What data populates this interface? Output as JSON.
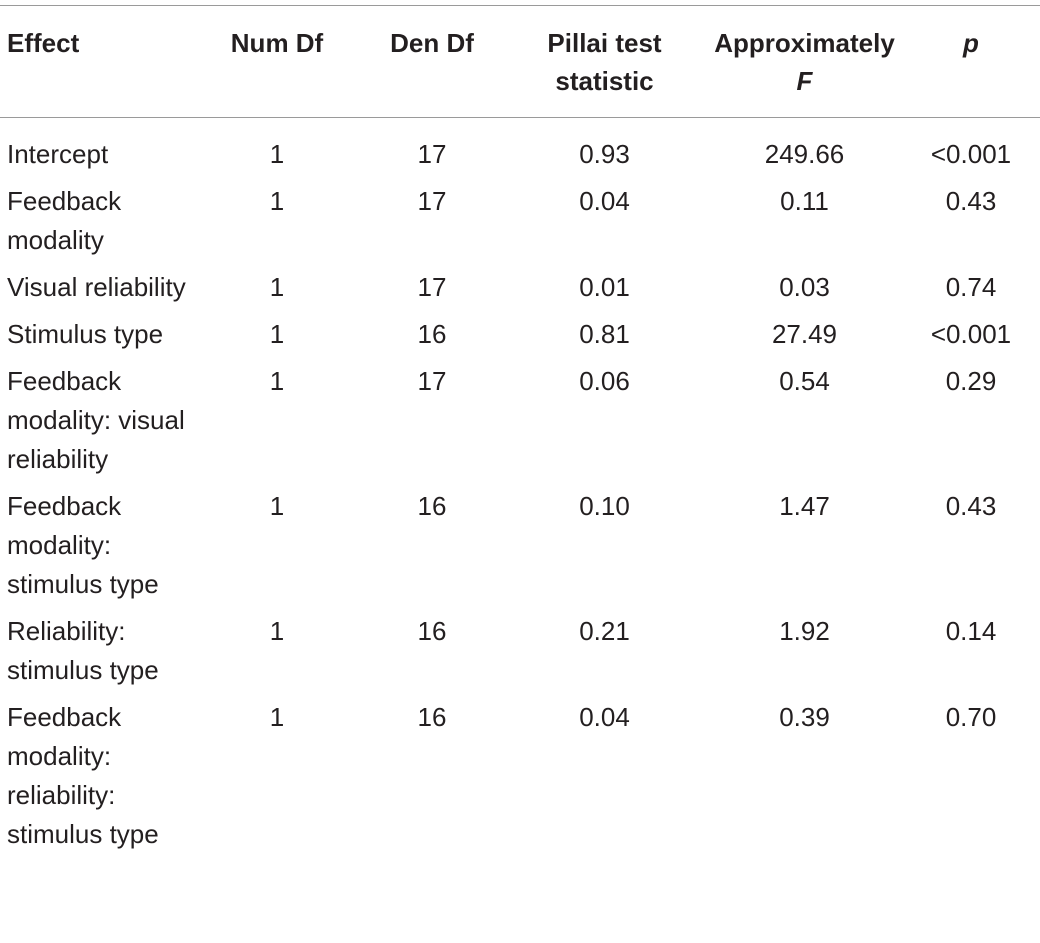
{
  "table": {
    "header": [
      "Effect",
      "Num Df",
      "Den Df",
      "Pillai test statistic",
      {
        "text": "Approximately",
        "emph": "F"
      },
      "p"
    ],
    "rows": [
      [
        "Intercept",
        "1",
        "17",
        "0.93",
        "249.66",
        "<0.001"
      ],
      [
        "Feedback modality",
        "1",
        "17",
        "0.04",
        "0.11",
        "0.43"
      ],
      [
        "Visual reliability",
        "1",
        "17",
        "0.01",
        "0.03",
        "0.74"
      ],
      [
        "Stimulus type",
        "1",
        "16",
        "0.81",
        "27.49",
        "<0.001"
      ],
      [
        "Feedback modality: visual reliability",
        "1",
        "17",
        "0.06",
        "0.54",
        "0.29"
      ],
      [
        "Feedback modality: stimulus type",
        "1",
        "16",
        "0.10",
        "1.47",
        "0.43"
      ],
      [
        "Reliability: stimulus type",
        "1",
        "16",
        "0.21",
        "1.92",
        "0.14"
      ],
      [
        "Feedback modality: reliability: stimulus type",
        "1",
        "16",
        "0.04",
        "0.39",
        "0.70"
      ]
    ]
  }
}
